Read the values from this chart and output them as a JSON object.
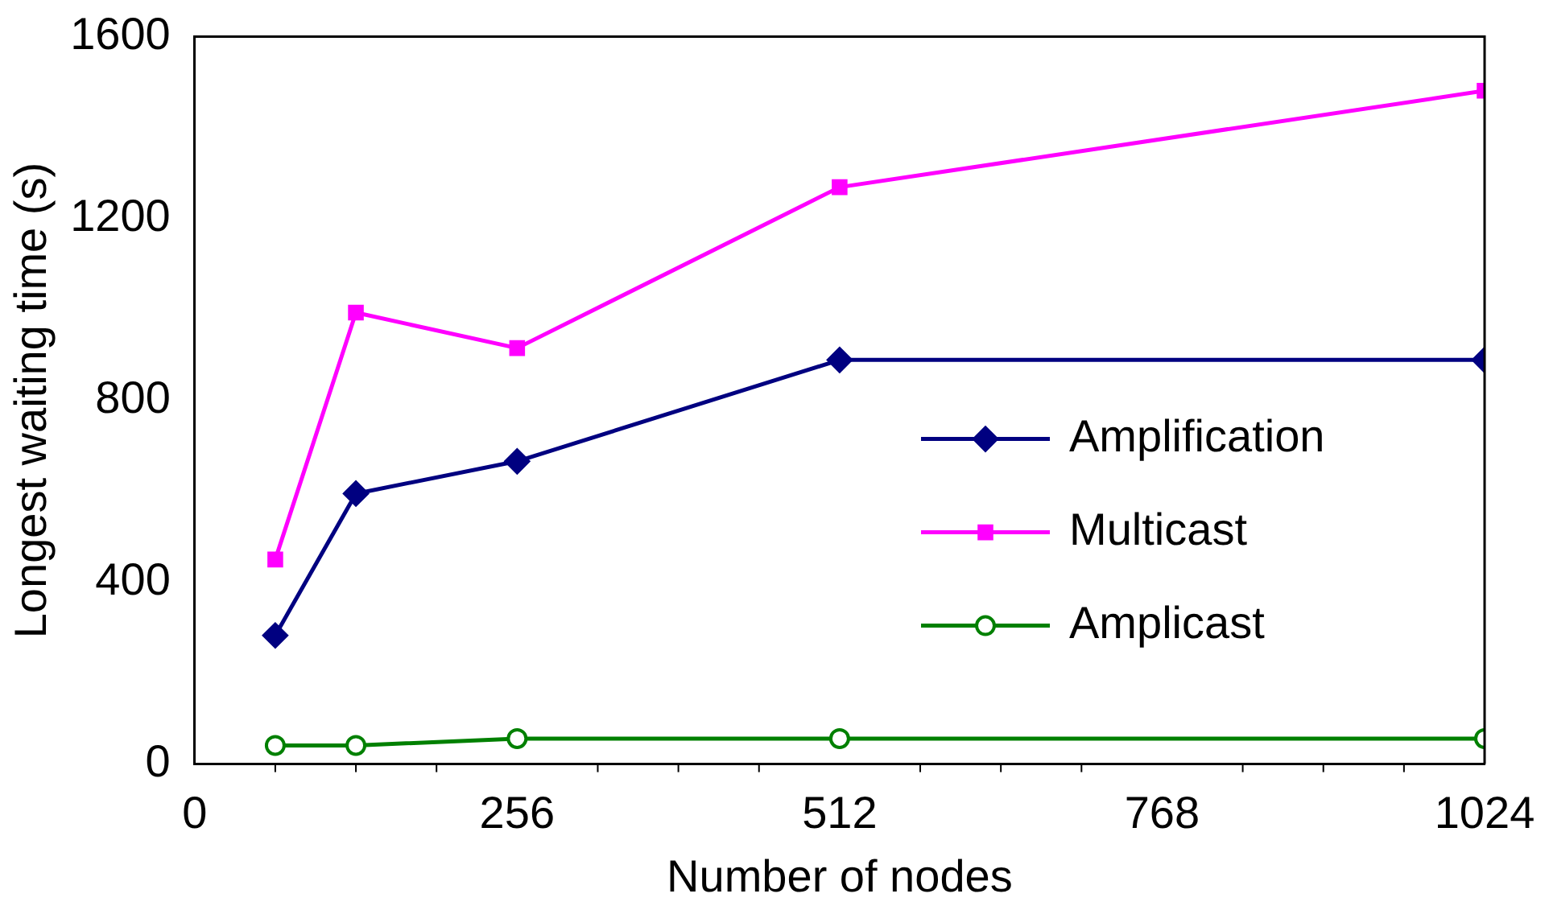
{
  "chart_data": {
    "type": "line",
    "xlabel": "Number of nodes",
    "ylabel": "Longest waiting time (s)",
    "x": [
      64,
      128,
      256,
      512,
      1024
    ],
    "series": [
      {
        "name": "Amplification",
        "color": "#000080",
        "marker": "diamond",
        "values": [
          283,
          595,
          666,
          889,
          889
        ]
      },
      {
        "name": "Multicast",
        "color": "#ff00ff",
        "marker": "square",
        "values": [
          450,
          993,
          915,
          1269,
          1481
        ]
      },
      {
        "name": "Amplicast",
        "color": "#008000",
        "marker": "circle",
        "values": [
          41,
          41,
          56,
          56,
          56
        ]
      }
    ],
    "xlim": [
      0,
      1024
    ],
    "xticks": [
      0,
      256,
      512,
      768,
      1024
    ],
    "ylim": [
      0,
      1600
    ],
    "yticks": [
      0,
      400,
      800,
      1200,
      1600
    ],
    "grid": false,
    "legend": "right",
    "line_style": "solid"
  }
}
